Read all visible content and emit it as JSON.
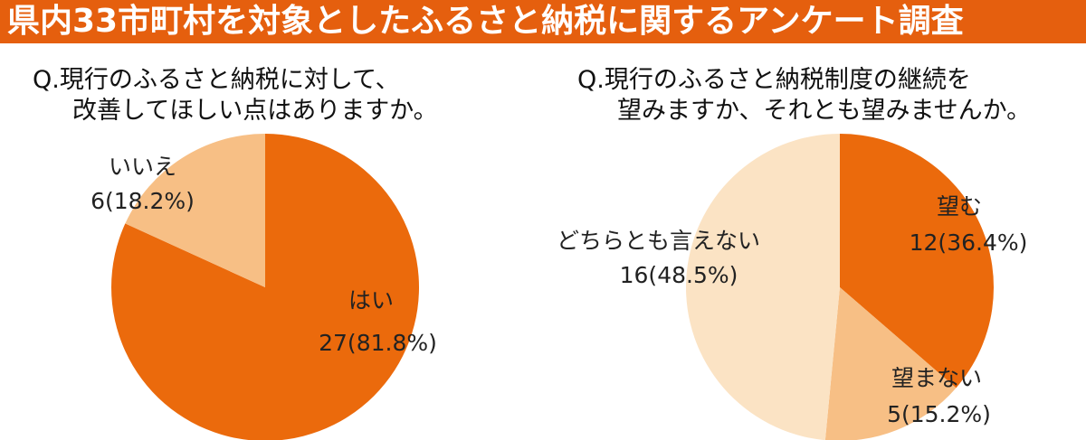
{
  "title": "県内33市町村を対象としたふるさと納税に関するアンケート調査",
  "colors": {
    "banner": "#E55F0E",
    "dark": "#EB6A0C",
    "medium": "#F7BF85",
    "light": "#FBE3C4"
  },
  "chart_data": [
    {
      "type": "pie",
      "title_line1": "Q.現行のふるさと納税に対して、",
      "title_line2": "改善してほしい点はありますか。",
      "slices": [
        {
          "label": "はい",
          "value": 27,
          "percent": 81.8,
          "value_text": "27(81.8%)",
          "color": "#EB6A0C"
        },
        {
          "label": "いいえ",
          "value": 6,
          "percent": 18.2,
          "value_text": "6(18.2%)",
          "color": "#F7BF85"
        }
      ],
      "start": "top",
      "direction": "clockwise"
    },
    {
      "type": "pie",
      "title_line1": "Q.現行のふるさと納税制度の継続を",
      "title_line2": "望みますか、それとも望みませんか。",
      "slices": [
        {
          "label": "望む",
          "value": 12,
          "percent": 36.4,
          "value_text": "12(36.4%)",
          "color": "#EB6A0C"
        },
        {
          "label": "望まない",
          "value": 5,
          "percent": 15.2,
          "value_text": "5(15.2%)",
          "color": "#F7BF85"
        },
        {
          "label": "どちらとも言えない",
          "value": 16,
          "percent": 48.5,
          "value_text": "16(48.5%)",
          "color": "#FBE3C4"
        }
      ],
      "start": "top",
      "direction": "clockwise"
    }
  ]
}
